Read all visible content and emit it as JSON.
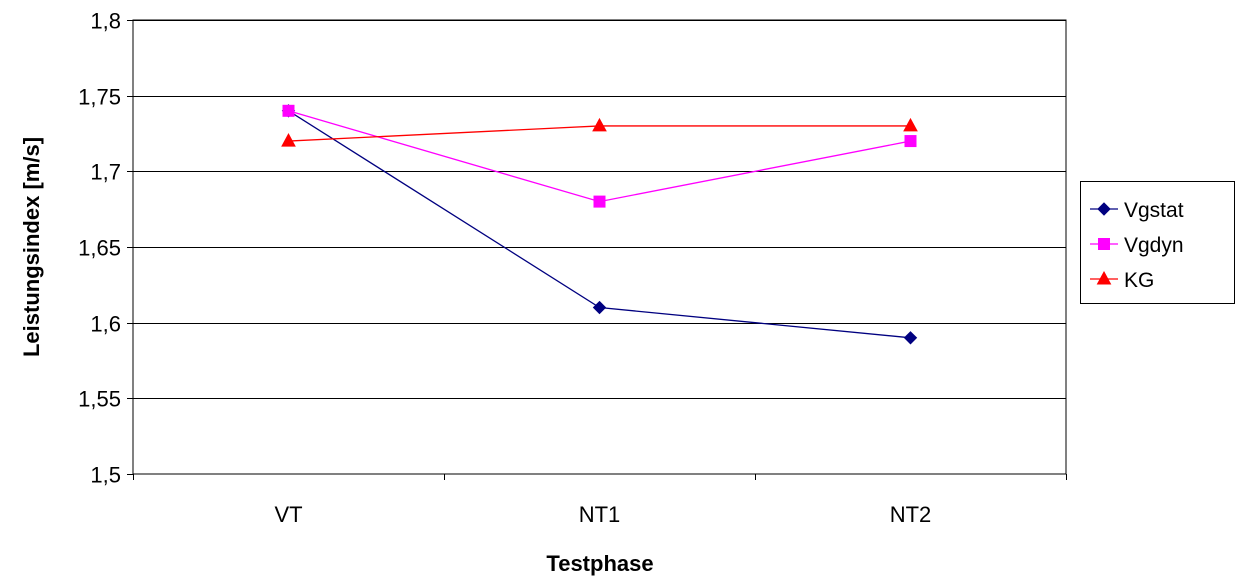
{
  "chart_data": {
    "type": "line",
    "categories": [
      "VT",
      "NT1",
      "NT2"
    ],
    "xlabel": "Testphase",
    "ylabel": "Leistungsindex [m/s]",
    "ylim": [
      1.5,
      1.8
    ],
    "yticks": [
      1.5,
      1.55,
      1.6,
      1.65,
      1.7,
      1.75,
      1.8
    ],
    "ytick_labels": [
      "1,5",
      "1,55",
      "1,6",
      "1,65",
      "1,7",
      "1,75",
      "1,8"
    ],
    "grid": true,
    "legend_position": "right",
    "series": [
      {
        "name": "Vgstat",
        "values": [
          1.74,
          1.61,
          1.59
        ],
        "color": "#000080",
        "marker": "diamond"
      },
      {
        "name": "Vgdyn",
        "values": [
          1.74,
          1.68,
          1.72
        ],
        "color": "#ff00ff",
        "marker": "square"
      },
      {
        "name": "KG",
        "values": [
          1.72,
          1.73,
          1.73
        ],
        "color": "#ff0000",
        "marker": "triangle"
      }
    ]
  }
}
